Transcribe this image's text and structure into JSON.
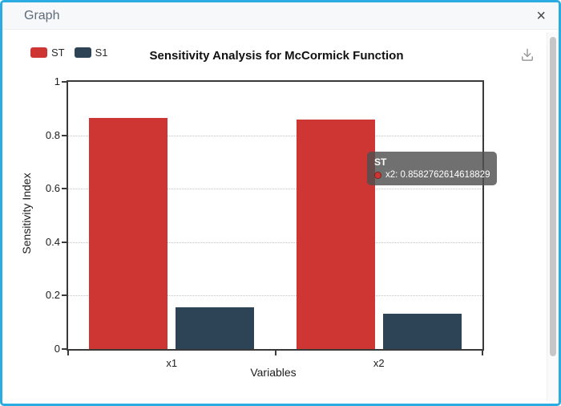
{
  "modal": {
    "title": "Graph",
    "close_label": "×"
  },
  "tooltip": {
    "series": "ST",
    "text": "x2: 0.8582762614618829"
  },
  "colors": {
    "accent_border": "#2aace2",
    "header_bg": "#f7f8f9",
    "st_red": "#ce3633",
    "s1_slate": "#2d4356"
  },
  "chart_data": {
    "type": "bar",
    "title": "Sensitivity Analysis for McCormick Function",
    "categories": [
      "x1",
      "x2"
    ],
    "series": [
      {
        "name": "ST",
        "color": "#ce3633",
        "values": [
          0.866,
          0.8582762614618829
        ]
      },
      {
        "name": "S1",
        "color": "#2d4356",
        "values": [
          0.157,
          0.131
        ]
      }
    ],
    "xlabel": "Variables",
    "ylabel": "Sensitivity Index",
    "ylim": [
      0,
      1
    ],
    "yticks": [
      0,
      0.2,
      0.4,
      0.6,
      0.8,
      1
    ],
    "ytick_labels": [
      "0",
      "0.2",
      "0.4",
      "0.6",
      "0.8",
      "1"
    ],
    "grid": "horizontal-dotted",
    "legend_position": "top-left"
  }
}
